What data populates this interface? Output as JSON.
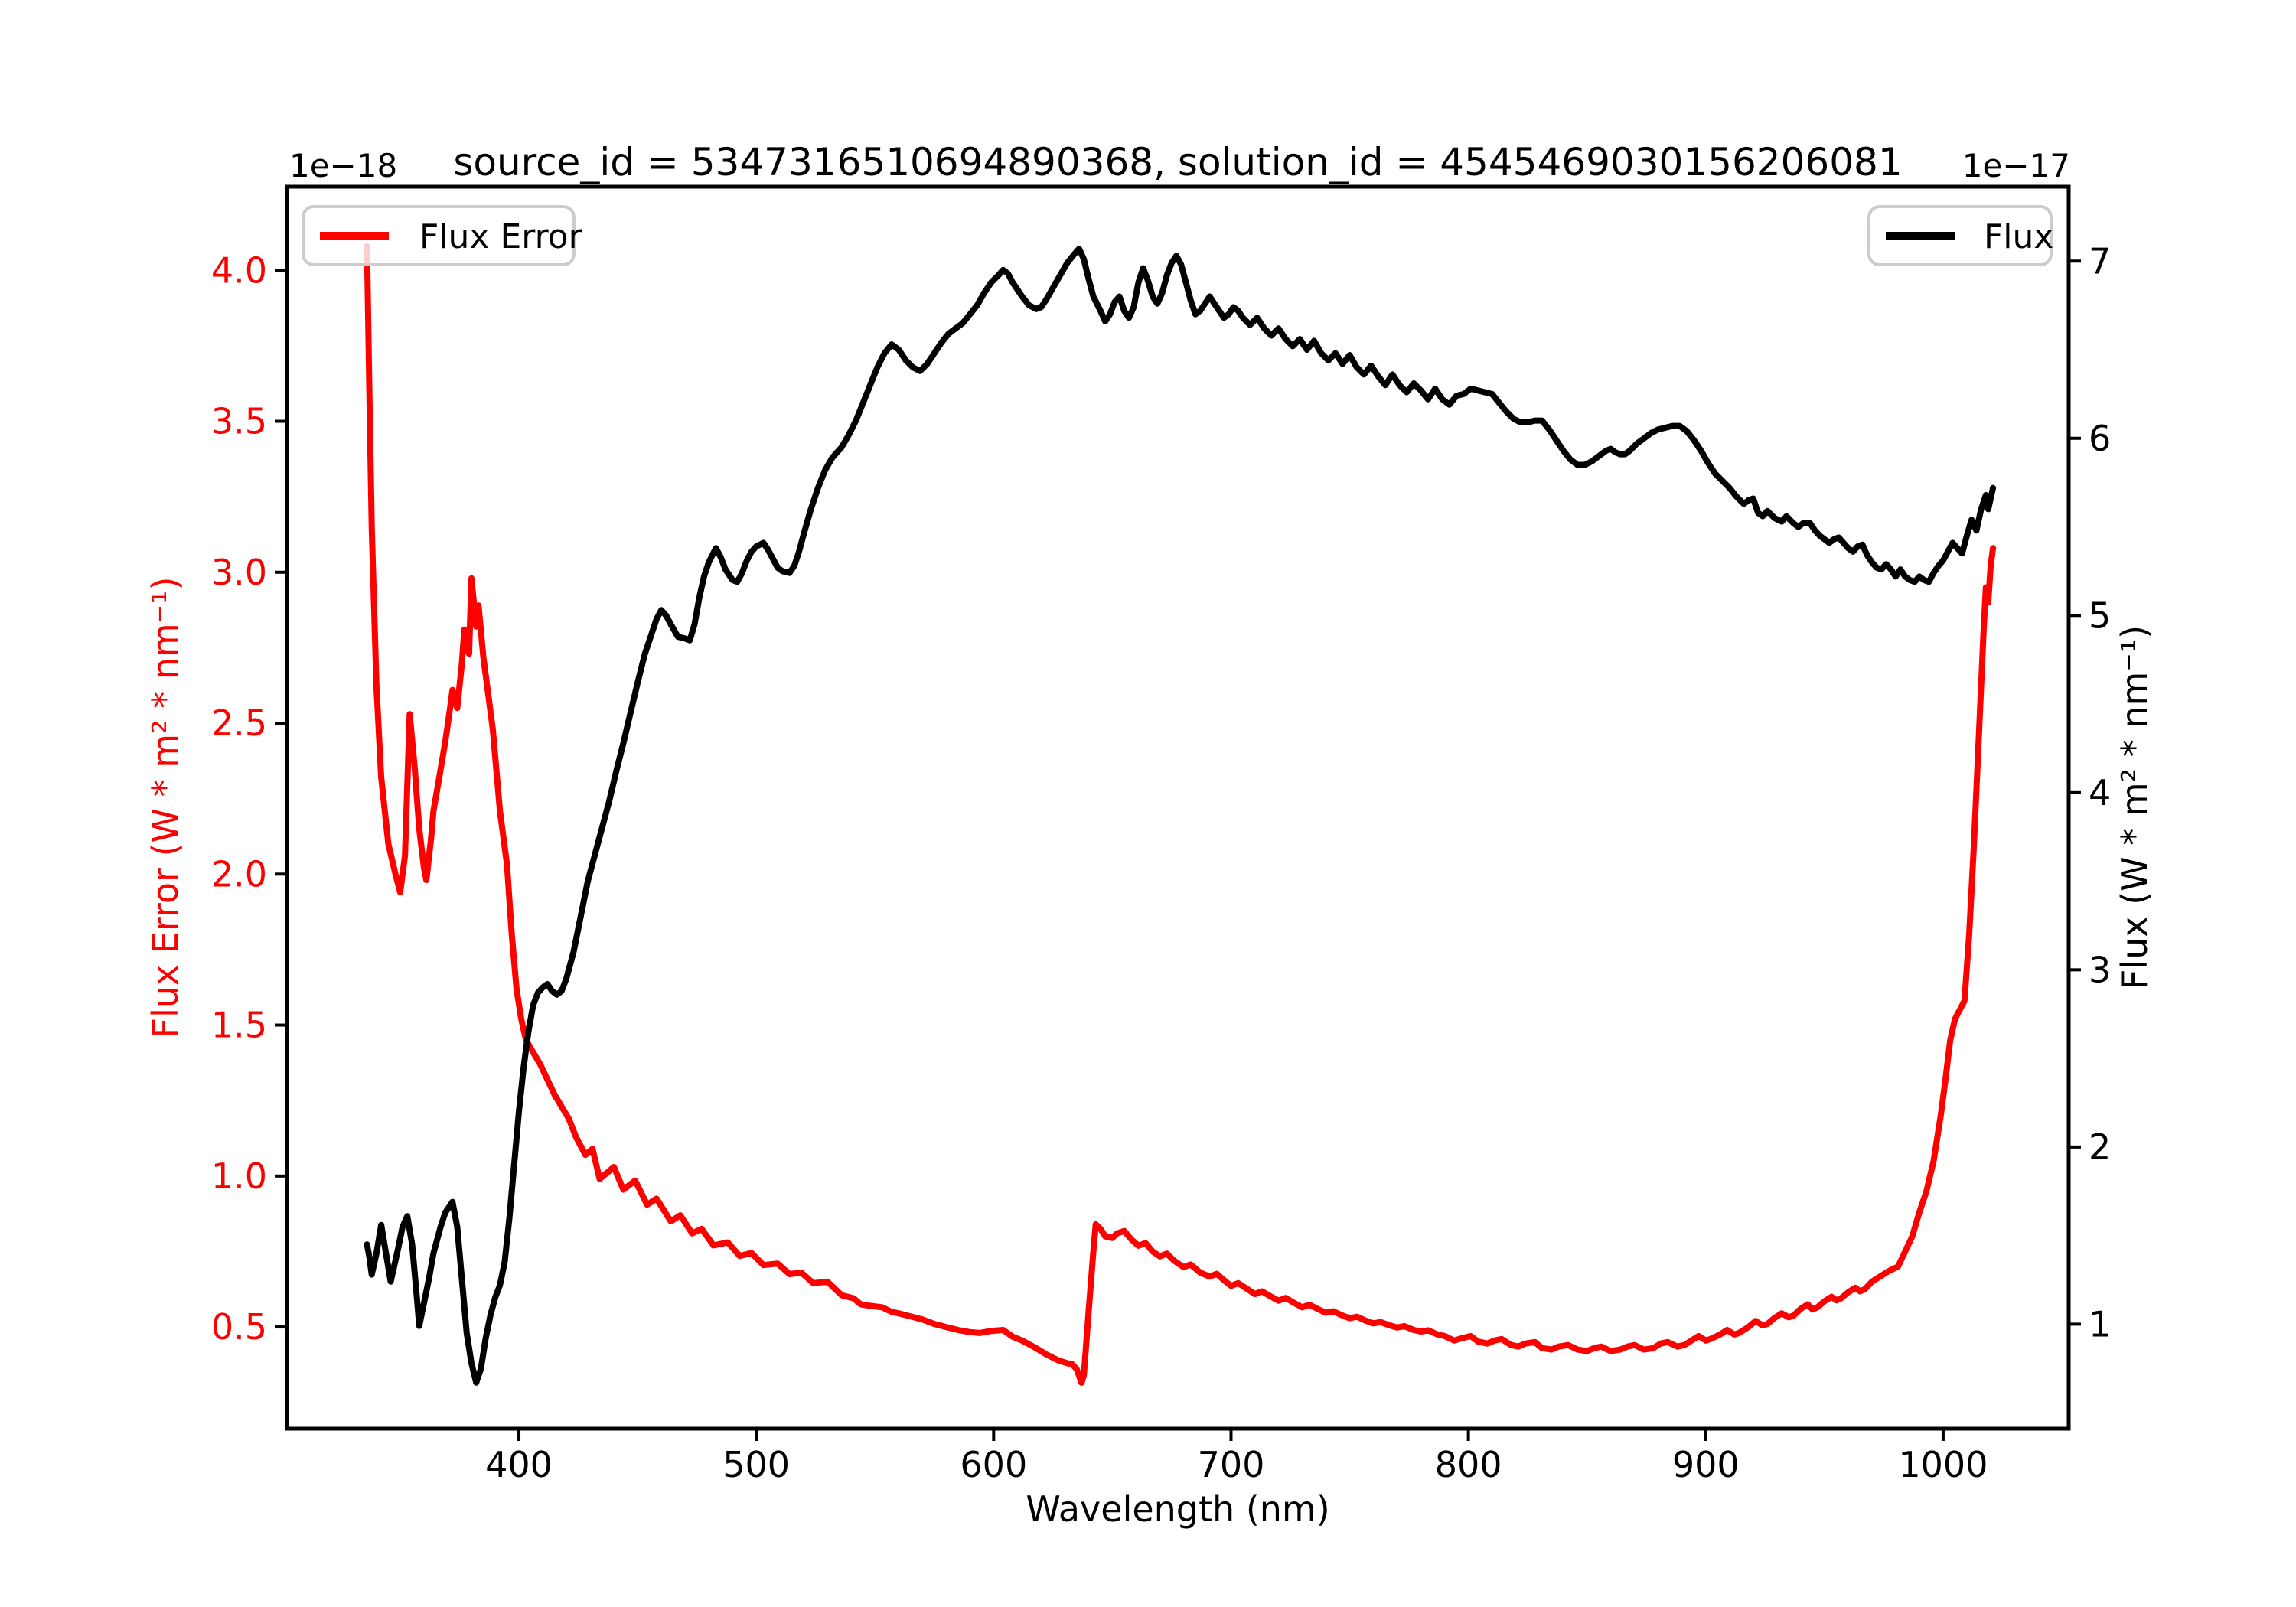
{
  "figure": {
    "title": "source_id = 5347316510694890368, solution_id = 4545469030156206081",
    "background": "#ffffff"
  },
  "chart_data": {
    "type": "line",
    "title": "source_id = 5347316510694890368, solution_id = 4545469030156206081",
    "xlabel": "Wavelength (nm)",
    "grid": false,
    "xlim": [
      302.3,
      1052.9
    ],
    "x_tick_values": [
      400,
      500,
      600,
      700,
      800,
      900,
      1000
    ],
    "x_tick_labels": [
      "400",
      "500",
      "600",
      "700",
      "800",
      "900",
      "1000"
    ],
    "left_axis": {
      "label": "Flux Error (W * m² * nm⁻¹)",
      "offset_text": "1e−18",
      "unit_scale": "1e-18",
      "color": "#ff0000",
      "lim": [
        0.163,
        4.277
      ],
      "tick_values": [
        0.5,
        1.0,
        1.5,
        2.0,
        2.5,
        3.0,
        3.5,
        4.0
      ],
      "tick_labels": [
        "0.5",
        "1.0",
        "1.5",
        "2.0",
        "2.5",
        "3.0",
        "3.5",
        "4.0"
      ]
    },
    "right_axis": {
      "label": "Flux (W * m² * nm⁻¹)",
      "offset_text": "1e−17",
      "unit_scale": "1e-17",
      "color": "#000000",
      "lim": [
        0.41,
        7.42
      ],
      "tick_values": [
        1,
        2,
        3,
        4,
        5,
        6,
        7
      ],
      "tick_labels": [
        "1",
        "2",
        "3",
        "4",
        "5",
        "6",
        "7"
      ]
    },
    "legend": [
      {
        "label": "Flux Error",
        "color": "#ff0000",
        "position": "upper left"
      },
      {
        "label": "Flux",
        "color": "#000000",
        "position": "upper right"
      }
    ],
    "series": [
      {
        "name": "Flux Error",
        "axis": "left",
        "color": "#ff0000",
        "linewidth": 8,
        "x": [
          336,
          337,
          338,
          340,
          342,
          345,
          348,
          350,
          352,
          354,
          356,
          358,
          360,
          361,
          363,
          364,
          366,
          369,
          371,
          372,
          374,
          376,
          377,
          379,
          380,
          382,
          383,
          385,
          387,
          389,
          392,
          395,
          397,
          399,
          401,
          403,
          406,
          409,
          412,
          415,
          418,
          421,
          424,
          428,
          431,
          434,
          437,
          440,
          444,
          449,
          454,
          458,
          464,
          468,
          473,
          477,
          482,
          488,
          493,
          498,
          503,
          509,
          514,
          519,
          524,
          530,
          536,
          541,
          544,
          548,
          553,
          557,
          560,
          565,
          570,
          575,
          580,
          585,
          590,
          594,
          599,
          604,
          608,
          612,
          617,
          622,
          627,
          631,
          633,
          635,
          637,
          638,
          640,
          642,
          643,
          645,
          647,
          650,
          652,
          655,
          658,
          661,
          664,
          667,
          670,
          673,
          676,
          680,
          683,
          687,
          691,
          694,
          697,
          700,
          703,
          707,
          710,
          713,
          717,
          720,
          723,
          727,
          730,
          733,
          737,
          740,
          743,
          747,
          750,
          753,
          757,
          760,
          763,
          767,
          770,
          773,
          777,
          780,
          783,
          787,
          790,
          794,
          797,
          801,
          804,
          808,
          811,
          814,
          818,
          821,
          824,
          828,
          831,
          835,
          838,
          842,
          846,
          850,
          853,
          856,
          860,
          864,
          867,
          870,
          874,
          878,
          881,
          884,
          888,
          891,
          894,
          897,
          900,
          902,
          906,
          909,
          912,
          914,
          918,
          921,
          924,
          926,
          929,
          932,
          935,
          937,
          940,
          943,
          945,
          947,
          950,
          953,
          955,
          957,
          960,
          963,
          965,
          967,
          970,
          974,
          977,
          981,
          984,
          987,
          990,
          993,
          996,
          999,
          1001,
          1003,
          1005,
          1007,
          1009,
          1011,
          1013,
          1015,
          1017,
          1018,
          1019,
          1020,
          1021
        ],
        "y": [
          4.08,
          3.6,
          3.15,
          2.62,
          2.32,
          2.1,
          2.0,
          1.94,
          2.06,
          2.53,
          2.36,
          2.15,
          2.02,
          1.98,
          2.12,
          2.21,
          2.3,
          2.44,
          2.55,
          2.61,
          2.55,
          2.7,
          2.81,
          2.73,
          2.98,
          2.82,
          2.89,
          2.72,
          2.6,
          2.48,
          2.21,
          2.03,
          1.8,
          1.62,
          1.52,
          1.45,
          1.41,
          1.37,
          1.32,
          1.27,
          1.23,
          1.19,
          1.13,
          1.07,
          1.09,
          0.99,
          1.01,
          1.03,
          0.955,
          0.985,
          0.905,
          0.925,
          0.85,
          0.87,
          0.81,
          0.825,
          0.77,
          0.78,
          0.735,
          0.745,
          0.705,
          0.71,
          0.675,
          0.68,
          0.645,
          0.65,
          0.605,
          0.595,
          0.575,
          0.57,
          0.565,
          0.55,
          0.545,
          0.535,
          0.525,
          0.51,
          0.5,
          0.49,
          0.483,
          0.48,
          0.487,
          0.49,
          0.468,
          0.455,
          0.434,
          0.41,
          0.39,
          0.38,
          0.377,
          0.36,
          0.315,
          0.34,
          0.55,
          0.75,
          0.84,
          0.825,
          0.8,
          0.795,
          0.81,
          0.818,
          0.79,
          0.769,
          0.778,
          0.75,
          0.734,
          0.743,
          0.72,
          0.698,
          0.707,
          0.68,
          0.667,
          0.676,
          0.655,
          0.636,
          0.645,
          0.625,
          0.609,
          0.618,
          0.6,
          0.587,
          0.596,
          0.578,
          0.565,
          0.574,
          0.558,
          0.547,
          0.552,
          0.538,
          0.529,
          0.534,
          0.52,
          0.512,
          0.516,
          0.505,
          0.498,
          0.503,
          0.49,
          0.485,
          0.489,
          0.475,
          0.47,
          0.455,
          0.462,
          0.47,
          0.452,
          0.445,
          0.455,
          0.46,
          0.44,
          0.435,
          0.445,
          0.45,
          0.43,
          0.425,
          0.435,
          0.44,
          0.425,
          0.42,
          0.43,
          0.435,
          0.42,
          0.425,
          0.435,
          0.44,
          0.425,
          0.43,
          0.445,
          0.45,
          0.435,
          0.44,
          0.455,
          0.47,
          0.455,
          0.46,
          0.475,
          0.49,
          0.475,
          0.48,
          0.5,
          0.52,
          0.505,
          0.51,
          0.53,
          0.545,
          0.532,
          0.538,
          0.56,
          0.575,
          0.558,
          0.565,
          0.585,
          0.6,
          0.588,
          0.595,
          0.615,
          0.63,
          0.618,
          0.625,
          0.65,
          0.67,
          0.685,
          0.7,
          0.75,
          0.8,
          0.88,
          0.95,
          1.05,
          1.2,
          1.32,
          1.45,
          1.52,
          1.55,
          1.58,
          1.8,
          2.1,
          2.45,
          2.8,
          2.95,
          2.9,
          3.02,
          3.08
        ]
      },
      {
        "name": "Flux",
        "axis": "right",
        "color": "#000000",
        "linewidth": 8,
        "x": [
          336,
          337,
          338,
          340,
          342,
          344,
          346,
          349,
          351,
          353,
          355,
          357,
          358,
          360,
          362,
          364,
          367,
          369,
          372,
          374,
          376,
          378,
          380,
          382,
          384,
          386,
          388,
          390,
          392,
          394,
          396,
          398,
          400,
          402,
          404,
          406,
          408,
          410,
          412,
          414,
          416,
          418,
          420,
          423,
          426,
          429,
          432,
          435,
          438,
          441,
          444,
          447,
          450,
          453,
          456,
          458,
          460,
          462,
          464,
          467,
          470,
          472,
          474,
          476,
          478,
          480,
          483,
          485,
          487,
          490,
          492,
          494,
          496,
          498,
          500,
          503,
          505,
          507,
          509,
          511,
          514,
          516,
          518,
          520,
          523,
          526,
          529,
          532,
          536,
          539,
          542,
          545,
          548,
          551,
          554,
          557,
          560,
          563,
          566,
          569,
          572,
          575,
          578,
          581,
          584,
          587,
          590,
          593,
          596,
          599,
          602,
          604,
          606,
          608,
          610,
          612,
          615,
          618,
          620,
          622,
          625,
          628,
          631,
          634,
          636,
          638,
          640,
          642,
          645,
          647,
          649,
          651,
          653,
          655,
          657,
          659,
          661,
          663,
          665,
          667,
          669,
          671,
          673,
          675,
          677,
          679,
          681,
          683,
          685,
          687,
          689,
          691,
          693,
          695,
          697,
          699,
          701,
          703,
          705,
          708,
          711,
          714,
          717,
          720,
          723,
          726,
          729,
          732,
          735,
          738,
          741,
          744,
          747,
          750,
          753,
          756,
          759,
          762,
          765,
          768,
          771,
          774,
          777,
          780,
          783,
          786,
          789,
          792,
          795,
          798,
          801,
          804,
          807,
          810,
          813,
          816,
          819,
          822,
          825,
          828,
          831,
          834,
          837,
          840,
          843,
          846,
          849,
          852,
          855,
          858,
          860,
          862,
          864,
          866,
          868,
          871,
          874,
          877,
          880,
          883,
          886,
          889,
          892,
          895,
          898,
          901,
          904,
          907,
          910,
          913,
          916,
          918,
          920,
          922,
          924,
          926,
          929,
          932,
          934,
          937,
          939,
          941,
          944,
          946,
          948,
          950,
          952,
          954,
          956,
          958,
          960,
          962,
          964,
          966,
          968,
          970,
          972,
          974,
          976,
          978,
          980,
          982,
          984,
          986,
          988,
          990,
          992,
          994,
          996,
          998,
          1000,
          1002,
          1004,
          1006,
          1008,
          1010,
          1012,
          1014,
          1016,
          1018,
          1019,
          1020,
          1021
        ],
        "y": [
          1.45,
          1.38,
          1.28,
          1.4,
          1.56,
          1.4,
          1.24,
          1.42,
          1.55,
          1.61,
          1.45,
          1.15,
          0.99,
          1.12,
          1.25,
          1.4,
          1.55,
          1.63,
          1.69,
          1.55,
          1.25,
          0.95,
          0.78,
          0.67,
          0.75,
          0.92,
          1.05,
          1.15,
          1.22,
          1.35,
          1.6,
          1.9,
          2.2,
          2.45,
          2.65,
          2.8,
          2.87,
          2.9,
          2.92,
          2.88,
          2.86,
          2.88,
          2.95,
          3.1,
          3.3,
          3.5,
          3.65,
          3.8,
          3.95,
          4.12,
          4.28,
          4.45,
          4.62,
          4.78,
          4.9,
          4.98,
          5.03,
          5.0,
          4.95,
          4.88,
          4.87,
          4.86,
          4.95,
          5.1,
          5.22,
          5.3,
          5.38,
          5.33,
          5.26,
          5.2,
          5.19,
          5.24,
          5.31,
          5.36,
          5.39,
          5.41,
          5.37,
          5.32,
          5.27,
          5.25,
          5.24,
          5.28,
          5.36,
          5.46,
          5.6,
          5.72,
          5.82,
          5.89,
          5.95,
          6.02,
          6.1,
          6.2,
          6.3,
          6.4,
          6.48,
          6.53,
          6.5,
          6.44,
          6.4,
          6.38,
          6.42,
          6.48,
          6.54,
          6.59,
          6.62,
          6.65,
          6.7,
          6.75,
          6.82,
          6.88,
          6.92,
          6.95,
          6.93,
          6.88,
          6.84,
          6.8,
          6.75,
          6.73,
          6.74,
          6.78,
          6.85,
          6.92,
          6.99,
          7.04,
          7.07,
          7.01,
          6.9,
          6.8,
          6.72,
          6.66,
          6.7,
          6.77,
          6.8,
          6.72,
          6.68,
          6.74,
          6.88,
          6.96,
          6.89,
          6.8,
          6.76,
          6.82,
          6.92,
          6.99,
          7.03,
          6.98,
          6.88,
          6.78,
          6.7,
          6.72,
          6.76,
          6.8,
          6.76,
          6.72,
          6.68,
          6.7,
          6.74,
          6.72,
          6.68,
          6.64,
          6.68,
          6.62,
          6.58,
          6.62,
          6.56,
          6.52,
          6.56,
          6.5,
          6.55,
          6.48,
          6.44,
          6.48,
          6.42,
          6.47,
          6.4,
          6.36,
          6.41,
          6.35,
          6.3,
          6.36,
          6.3,
          6.26,
          6.31,
          6.27,
          6.22,
          6.28,
          6.22,
          6.19,
          6.24,
          6.25,
          6.28,
          6.27,
          6.26,
          6.25,
          6.2,
          6.15,
          6.11,
          6.09,
          6.09,
          6.1,
          6.1,
          6.05,
          5.99,
          5.93,
          5.88,
          5.85,
          5.85,
          5.87,
          5.9,
          5.93,
          5.94,
          5.92,
          5.91,
          5.91,
          5.93,
          5.97,
          6.0,
          6.03,
          6.05,
          6.06,
          6.07,
          6.07,
          6.04,
          5.99,
          5.93,
          5.86,
          5.8,
          5.76,
          5.72,
          5.67,
          5.63,
          5.65,
          5.66,
          5.58,
          5.56,
          5.59,
          5.55,
          5.53,
          5.56,
          5.52,
          5.5,
          5.52,
          5.52,
          5.48,
          5.45,
          5.43,
          5.41,
          5.43,
          5.44,
          5.41,
          5.38,
          5.36,
          5.39,
          5.4,
          5.34,
          5.3,
          5.27,
          5.26,
          5.29,
          5.26,
          5.22,
          5.26,
          5.22,
          5.2,
          5.19,
          5.22,
          5.2,
          5.19,
          5.24,
          5.28,
          5.31,
          5.36,
          5.41,
          5.38,
          5.35,
          5.45,
          5.54,
          5.48,
          5.6,
          5.68,
          5.6,
          5.66,
          5.72
        ]
      }
    ]
  }
}
